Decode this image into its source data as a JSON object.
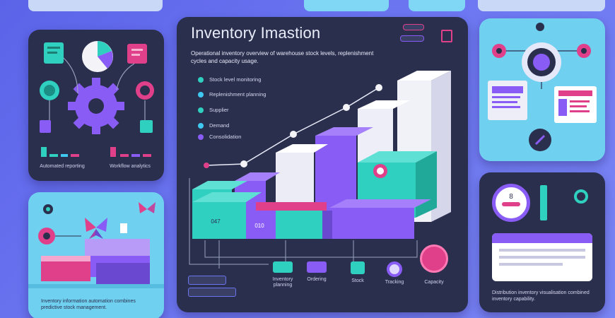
{
  "main_panel": {
    "title": "Inventory Imastion",
    "description": "Operational inventory overview of warehouse stock levels, replenishment cycles and capacity usage.",
    "bullets": [
      {
        "label": "Stock level monitoring",
        "color": "#2fd0c0"
      },
      {
        "label": "Replenishment planning",
        "color": "#3fc9f0"
      },
      {
        "label": "Supplier",
        "color": "#2fd0c0"
      },
      {
        "label": "Demand",
        "color": "#3fc9f0"
      },
      {
        "label": "Consolidation",
        "color": "#8a5cf6"
      }
    ],
    "header_chips": [
      "",
      ""
    ],
    "block_labels": [
      "047",
      "010",
      "",
      "",
      ""
    ],
    "bottom_legend": [
      "",
      ""
    ],
    "bottom_items": [
      {
        "icon": "bar-chip-icon",
        "label": "Inventory planning",
        "color": "#2fd0c0"
      },
      {
        "icon": "bar-chip-icon",
        "label": "Ordering",
        "color": "#8a5cf6"
      },
      {
        "icon": "box-icon",
        "label": "Stock",
        "color": "#2fd0c0"
      },
      {
        "icon": "target-icon",
        "label": "Tracking",
        "color": "#e0d8ff"
      },
      {
        "icon": "circle-badge-icon",
        "label": "Capacity",
        "color": "#e0408a"
      }
    ]
  },
  "left_top_panel": {
    "labels": [
      "Automated reporting",
      "Workflow analytics"
    ]
  },
  "left_bottom_panel": {
    "caption": "Inventory information automation combines predictive stock management."
  },
  "right_top_panel": {
    "buttons": [
      "",
      ""
    ]
  },
  "right_bottom_panel": {
    "badge_number": "8",
    "card_title": "",
    "caption": "Distribution inventory visualisation combined inventory capability."
  },
  "colors": {
    "teal": "#2fd0c0",
    "purple": "#8a5cf6",
    "magenta": "#e0408a",
    "dark_panel": "#2b2f4e"
  }
}
